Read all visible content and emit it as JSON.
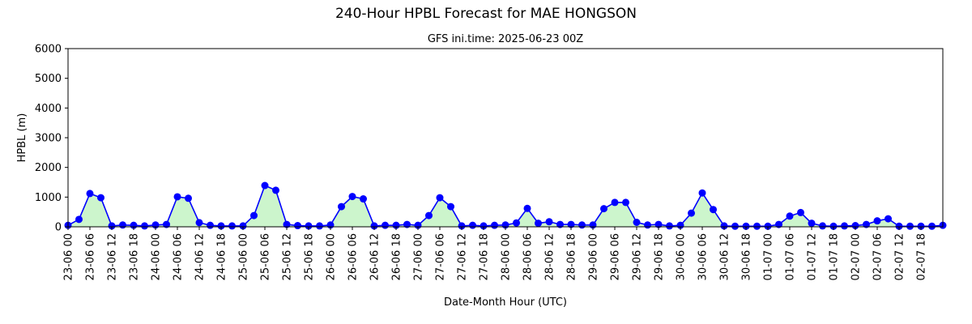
{
  "chart_data": {
    "type": "area",
    "title": "240-Hour HPBL Forecast for MAE HONGSON",
    "subtitle": "GFS ini.time: 2025-06-23 00Z",
    "xlabel": "Date-Month Hour (UTC)",
    "ylabel": "HPBL (m)",
    "ylim": [
      0,
      6000
    ],
    "yticks": [
      0,
      1000,
      2000,
      3000,
      4000,
      5000,
      6000
    ],
    "grid": false,
    "x_step_hours": 3,
    "categories": [
      "23-06 00",
      "23-06 03",
      "23-06 06",
      "23-06 09",
      "23-06 12",
      "23-06 15",
      "23-06 18",
      "23-06 21",
      "24-06 00",
      "24-06 03",
      "24-06 06",
      "24-06 09",
      "24-06 12",
      "24-06 15",
      "24-06 18",
      "24-06 21",
      "25-06 00",
      "25-06 03",
      "25-06 06",
      "25-06 09",
      "25-06 12",
      "25-06 15",
      "25-06 18",
      "25-06 21",
      "26-06 00",
      "26-06 03",
      "26-06 06",
      "26-06 09",
      "26-06 12",
      "26-06 15",
      "26-06 18",
      "26-06 21",
      "27-06 00",
      "27-06 03",
      "27-06 06",
      "27-06 09",
      "27-06 12",
      "27-06 15",
      "27-06 18",
      "27-06 21",
      "28-06 00",
      "28-06 03",
      "28-06 06",
      "28-06 09",
      "28-06 12",
      "28-06 15",
      "28-06 18",
      "28-06 21",
      "29-06 00",
      "29-06 03",
      "29-06 06",
      "29-06 09",
      "29-06 12",
      "29-06 15",
      "29-06 18",
      "29-06 21",
      "30-06 00",
      "30-06 03",
      "30-06 06",
      "30-06 09",
      "30-06 12",
      "30-06 15",
      "30-06 18",
      "30-06 21",
      "01-07 00",
      "01-07 03",
      "01-07 06",
      "01-07 09",
      "01-07 12",
      "01-07 15",
      "01-07 18",
      "01-07 21",
      "02-07 00",
      "02-07 03",
      "02-07 06",
      "02-07 09",
      "02-07 12",
      "02-07 15",
      "02-07 18",
      "02-07 21",
      "03-07 00"
    ],
    "tick_labels": [
      "23-06 00",
      "23-06 06",
      "23-06 12",
      "23-06 18",
      "24-06 00",
      "24-06 06",
      "24-06 12",
      "24-06 18",
      "25-06 00",
      "25-06 06",
      "25-06 12",
      "25-06 18",
      "26-06 00",
      "26-06 06",
      "26-06 12",
      "26-06 18",
      "27-06 00",
      "27-06 06",
      "27-06 12",
      "27-06 18",
      "28-06 00",
      "28-06 06",
      "28-06 12",
      "28-06 18",
      "29-06 00",
      "29-06 06",
      "29-06 12",
      "29-06 18",
      "30-06 00",
      "30-06 06",
      "30-06 12",
      "30-06 18",
      "01-07 00",
      "01-07 06",
      "01-07 12",
      "01-07 18",
      "02-07 00",
      "02-07 06",
      "02-07 12",
      "02-07 18"
    ],
    "series": [
      {
        "values": [
          50,
          250,
          1120,
          980,
          30,
          60,
          50,
          30,
          60,
          80,
          1010,
          960,
          140,
          50,
          30,
          30,
          30,
          380,
          1390,
          1230,
          80,
          40,
          30,
          30,
          60,
          680,
          1020,
          940,
          30,
          50,
          50,
          80,
          50,
          380,
          980,
          680,
          30,
          50,
          30,
          50,
          60,
          130,
          620,
          120,
          170,
          80,
          80,
          60,
          60,
          610,
          820,
          820,
          150,
          60,
          80,
          30,
          50,
          460,
          1140,
          580,
          30,
          20,
          20,
          20,
          20,
          80,
          360,
          480,
          120,
          30,
          20,
          30,
          40,
          80,
          200,
          270,
          20,
          20,
          20,
          20,
          50
        ]
      }
    ],
    "colors": {
      "line": "#0000ff",
      "marker": "#0000ff",
      "fill": "#ccf5cc"
    }
  }
}
